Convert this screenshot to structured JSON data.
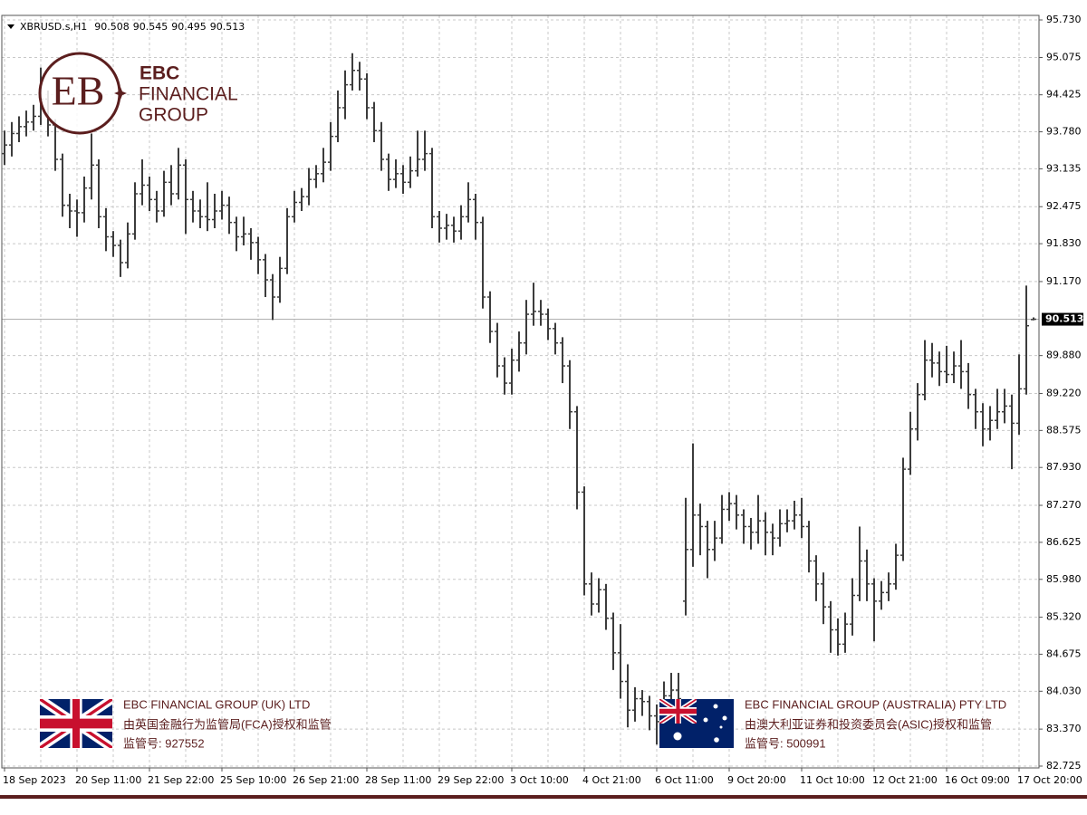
{
  "chart_data": {
    "type": "ohlc",
    "title": "XBRUSD.s,H1",
    "header_values": [
      90.508,
      90.545,
      90.495,
      90.513
    ],
    "last_price": 90.513,
    "color": "#3c3c3c",
    "grid": true,
    "ylim": [
      82.725,
      95.73
    ],
    "yticks": [
      {
        "value": 95.73,
        "label": "95.730"
      },
      95.075,
      94.425,
      {
        "value": 93.78,
        "label": "93.780"
      },
      93.135,
      92.475,
      {
        "value": 91.83,
        "label": "91.830"
      },
      {
        "value": 91.17,
        "label": "91.170"
      },
      {
        "value": 89.88,
        "label": "89.880"
      },
      {
        "value": 89.22,
        "label": "89.220"
      },
      88.575,
      {
        "value": 87.93,
        "label": "87.930"
      },
      {
        "value": 87.27,
        "label": "87.270"
      },
      86.625,
      {
        "value": 85.98,
        "label": "85.980"
      },
      {
        "value": 85.32,
        "label": "85.320"
      },
      84.675,
      {
        "value": 84.03,
        "label": "84.030"
      },
      {
        "value": 83.37,
        "label": "83.370"
      },
      82.725
    ],
    "categories": [
      "18 Sep 2023",
      null,
      null,
      null,
      null,
      null,
      null,
      null,
      null,
      null,
      "20 Sep 11:00",
      null,
      null,
      null,
      null,
      null,
      null,
      null,
      null,
      null,
      "21 Sep 22:00",
      null,
      null,
      null,
      null,
      null,
      null,
      null,
      null,
      null,
      "25 Sep 10:00",
      null,
      null,
      null,
      null,
      null,
      null,
      null,
      null,
      null,
      "26 Sep 21:00",
      null,
      null,
      null,
      null,
      null,
      null,
      null,
      null,
      null,
      "28 Sep 11:00",
      null,
      null,
      null,
      null,
      null,
      null,
      null,
      null,
      null,
      "29 Sep 22:00",
      null,
      null,
      null,
      null,
      null,
      null,
      null,
      null,
      null,
      "3 Oct 10:00",
      null,
      null,
      null,
      null,
      null,
      null,
      null,
      null,
      null,
      "4 Oct 21:00",
      null,
      null,
      null,
      null,
      null,
      null,
      null,
      null,
      null,
      "6 Oct 11:00",
      null,
      null,
      null,
      null,
      null,
      null,
      null,
      null,
      null,
      "9 Oct 20:00",
      null,
      null,
      null,
      null,
      null,
      null,
      null,
      null,
      null,
      "11 Oct 10:00",
      null,
      null,
      null,
      null,
      null,
      null,
      null,
      null,
      null,
      "12 Oct 21:00",
      null,
      null,
      null,
      null,
      null,
      null,
      null,
      null,
      null,
      "16 Oct 09:00",
      null,
      null,
      null,
      null,
      null,
      null,
      null,
      null,
      null,
      "17 Oct 20:00",
      null,
      null
    ],
    "open": [
      93.4,
      93.55,
      93.75,
      93.87,
      93.95,
      94.05,
      94.35,
      93.9,
      93.3,
      92.5,
      92.4,
      92.37,
      92.8,
      93.2,
      92.3,
      91.95,
      91.8,
      91.5,
      92.0,
      92.7,
      92.85,
      92.6,
      92.4,
      92.9,
      92.7,
      93.2,
      92.6,
      92.4,
      92.3,
      92.25,
      92.4,
      92.5,
      92.2,
      91.95,
      92.0,
      91.85,
      91.55,
      91.2,
      90.9,
      91.4,
      92.3,
      92.55,
      92.65,
      92.95,
      93.05,
      93.25,
      93.7,
      94.2,
      94.6,
      94.85,
      94.7,
      94.2,
      93.8,
      93.3,
      92.95,
      93.05,
      92.9,
      93.1,
      93.3,
      93.4,
      92.3,
      92.1,
      92.15,
      92.05,
      92.3,
      92.6,
      92.2,
      90.9,
      90.3,
      89.7,
      89.4,
      89.8,
      90.1,
      90.6,
      90.65,
      90.6,
      90.35,
      90.1,
      89.7,
      88.9,
      87.5,
      85.9,
      85.55,
      85.8,
      85.3,
      84.7,
      84.2,
      83.7,
      83.9,
      83.85,
      83.6,
      83.5,
      83.95,
      84.05,
      85.6,
      86.5,
      87.1,
      86.9,
      86.5,
      86.7,
      87.2,
      87.3,
      87.1,
      86.9,
      86.8,
      87.0,
      86.8,
      86.7,
      86.95,
      87.0,
      87.1,
      86.9,
      86.3,
      85.9,
      85.5,
      85.1,
      84.85,
      85.2,
      85.7,
      86.3,
      85.9,
      85.6,
      85.75,
      85.9,
      86.4,
      87.9,
      88.6,
      89.2,
      89.8,
      89.75,
      89.6,
      89.55,
      89.7,
      89.6,
      89.2,
      88.9,
      88.6,
      88.75,
      88.9,
      89.0,
      88.7,
      89.3,
      90.508
    ],
    "high": [
      93.8,
      93.95,
      94.05,
      94.15,
      94.25,
      94.9,
      94.5,
      94.0,
      93.4,
      92.7,
      92.6,
      93.0,
      93.75,
      93.3,
      92.45,
      92.05,
      91.9,
      92.2,
      92.9,
      93.3,
      93.0,
      92.75,
      93.1,
      93.2,
      93.5,
      93.3,
      92.75,
      92.6,
      92.9,
      92.7,
      92.75,
      92.65,
      92.3,
      92.3,
      92.1,
      91.95,
      91.65,
      91.3,
      91.6,
      92.45,
      92.75,
      92.8,
      93.15,
      93.2,
      93.5,
      93.95,
      94.5,
      94.85,
      95.15,
      95.0,
      94.8,
      94.3,
      93.95,
      93.4,
      93.3,
      93.2,
      93.35,
      93.8,
      93.8,
      93.5,
      92.4,
      92.35,
      92.3,
      92.5,
      92.9,
      92.7,
      92.3,
      91.0,
      90.45,
      89.85,
      90.0,
      90.3,
      90.85,
      91.15,
      90.85,
      90.7,
      90.45,
      90.2,
      89.8,
      89.0,
      87.6,
      86.1,
      86.0,
      85.9,
      85.4,
      85.2,
      84.5,
      84.1,
      84.05,
      83.95,
      83.8,
      84.2,
      84.35,
      84.35,
      87.4,
      88.35,
      87.3,
      87.0,
      87.0,
      87.45,
      87.5,
      87.45,
      87.2,
      87.05,
      87.45,
      87.15,
      86.95,
      87.2,
      87.2,
      87.35,
      87.4,
      87.0,
      86.4,
      86.1,
      85.6,
      85.3,
      85.4,
      86.0,
      86.9,
      86.5,
      86.0,
      85.95,
      86.1,
      86.6,
      88.1,
      88.9,
      89.4,
      90.15,
      90.1,
      89.95,
      90.05,
      89.95,
      90.15,
      89.75,
      89.3,
      89.05,
      89.0,
      89.3,
      89.3,
      89.2,
      89.9,
      91.1,
      90.545
    ],
    "low": [
      93.2,
      93.35,
      93.6,
      93.7,
      93.8,
      93.9,
      93.7,
      93.1,
      92.3,
      92.1,
      91.95,
      92.2,
      92.6,
      92.1,
      91.7,
      91.6,
      91.25,
      91.4,
      91.9,
      92.5,
      92.4,
      92.2,
      92.3,
      92.5,
      92.6,
      92.0,
      92.2,
      92.1,
      92.05,
      92.1,
      92.25,
      92.0,
      91.7,
      91.8,
      91.55,
      91.3,
      90.9,
      90.5,
      90.8,
      91.3,
      92.2,
      92.4,
      92.5,
      92.8,
      92.9,
      93.1,
      93.6,
      94.0,
      94.5,
      94.5,
      94.0,
      93.6,
      93.1,
      92.75,
      92.8,
      92.7,
      92.8,
      93.0,
      93.1,
      92.1,
      91.85,
      91.9,
      91.85,
      91.9,
      92.2,
      91.9,
      90.7,
      90.1,
      89.5,
      89.2,
      89.2,
      89.6,
      89.9,
      90.4,
      90.4,
      90.15,
      89.9,
      89.4,
      88.6,
      87.2,
      85.7,
      85.35,
      85.4,
      85.1,
      84.4,
      83.9,
      83.4,
      83.5,
      83.6,
      83.35,
      83.1,
      83.3,
      83.8,
      83.6,
      85.35,
      86.2,
      86.4,
      86.0,
      86.3,
      86.6,
      87.0,
      86.85,
      86.6,
      86.5,
      86.6,
      86.4,
      86.4,
      86.55,
      86.8,
      86.85,
      86.7,
      86.1,
      85.6,
      85.2,
      84.7,
      84.65,
      84.7,
      85.0,
      85.6,
      85.6,
      84.9,
      85.45,
      85.6,
      85.8,
      86.3,
      87.8,
      88.4,
      89.1,
      89.5,
      89.35,
      89.4,
      89.4,
      89.3,
      88.95,
      88.6,
      88.3,
      88.4,
      88.6,
      88.7,
      87.9,
      88.5,
      89.2,
      90.495
    ],
    "close": [
      93.55,
      93.75,
      93.87,
      93.95,
      94.05,
      94.35,
      93.9,
      93.3,
      92.5,
      92.4,
      92.37,
      92.8,
      93.2,
      92.3,
      91.95,
      91.8,
      91.5,
      92.0,
      92.7,
      92.85,
      92.6,
      92.4,
      92.9,
      92.7,
      93.2,
      92.6,
      92.4,
      92.3,
      92.25,
      92.4,
      92.5,
      92.2,
      91.95,
      92.0,
      91.85,
      91.55,
      91.2,
      90.9,
      91.4,
      92.3,
      92.55,
      92.65,
      92.95,
      93.05,
      93.25,
      93.7,
      94.2,
      94.6,
      94.85,
      94.7,
      94.2,
      93.8,
      93.3,
      92.95,
      93.05,
      92.9,
      93.1,
      93.3,
      93.4,
      92.3,
      92.1,
      92.15,
      92.05,
      92.3,
      92.6,
      92.2,
      90.9,
      90.3,
      89.7,
      89.4,
      89.8,
      90.1,
      90.6,
      90.65,
      90.6,
      90.35,
      90.1,
      89.7,
      88.9,
      87.5,
      85.9,
      85.55,
      85.8,
      85.3,
      84.7,
      84.2,
      83.7,
      83.9,
      83.85,
      83.6,
      83.5,
      83.95,
      84.05,
      83.9,
      86.5,
      87.1,
      86.9,
      86.5,
      86.7,
      87.2,
      87.3,
      87.1,
      86.9,
      86.8,
      87.0,
      86.8,
      86.7,
      86.95,
      87.0,
      87.1,
      86.9,
      86.3,
      85.9,
      85.5,
      85.1,
      84.85,
      85.2,
      85.7,
      86.3,
      85.9,
      85.6,
      85.75,
      85.9,
      86.4,
      87.9,
      88.6,
      89.2,
      89.8,
      89.75,
      89.6,
      89.55,
      89.7,
      89.6,
      89.2,
      88.9,
      88.6,
      88.75,
      88.9,
      89.0,
      88.7,
      89.3,
      90.4,
      90.513
    ]
  },
  "branding": {
    "logo_mark": "EB",
    "logo_line1": "EBC",
    "logo_line2": "FINANCIAL",
    "logo_line3": "GROUP",
    "uk": {
      "name": "EBC FINANCIAL GROUP (UK) LTD",
      "regulator": "由英国金融行为监管局(FCA)授权和监管",
      "license": "监管号: 927552"
    },
    "au": {
      "name": "EBC FINANCIAL GROUP (AUSTRALIA) PTY LTD",
      "regulator": "由澳大利亚证券和投资委员会(ASIC)授权和监管",
      "license": "监管号: 500991"
    }
  }
}
